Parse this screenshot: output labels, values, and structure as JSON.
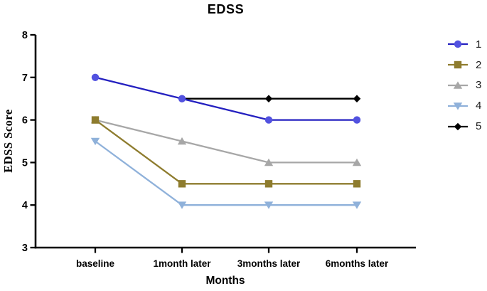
{
  "chart_data": {
    "type": "line",
    "title": "EDSS",
    "xlabel": "Months",
    "ylabel": "EDSS Score",
    "categories": [
      "baseline",
      "1month later",
      "3months later",
      "6months later"
    ],
    "ylim": [
      3,
      8
    ],
    "yticks": [
      3,
      4,
      5,
      6,
      7,
      8
    ],
    "grid": false,
    "legend_position": "right-outside",
    "axis_color": "#000000",
    "text_color": "#000000",
    "series": [
      {
        "name": "1",
        "marker": "circle",
        "line_color": "#2420c0",
        "marker_color": "#5252e0",
        "values": [
          7,
          6.5,
          6,
          6
        ]
      },
      {
        "name": "2",
        "marker": "square",
        "line_color": "#8e7c2e",
        "marker_color": "#8e7c2e",
        "values": [
          6,
          4.5,
          4.5,
          4.5
        ]
      },
      {
        "name": "3",
        "marker": "triangle-up",
        "line_color": "#a7a7a7",
        "marker_color": "#a7a7a7",
        "values": [
          6,
          5.5,
          5,
          5
        ]
      },
      {
        "name": "4",
        "marker": "triangle-down",
        "line_color": "#8fb1da",
        "marker_color": "#8fb1da",
        "values": [
          5.5,
          4,
          4,
          4
        ]
      },
      {
        "name": "5",
        "marker": "diamond",
        "line_color": "#000000",
        "marker_color": "#000000",
        "values": [
          null,
          6.5,
          6.5,
          6.5
        ]
      }
    ]
  }
}
